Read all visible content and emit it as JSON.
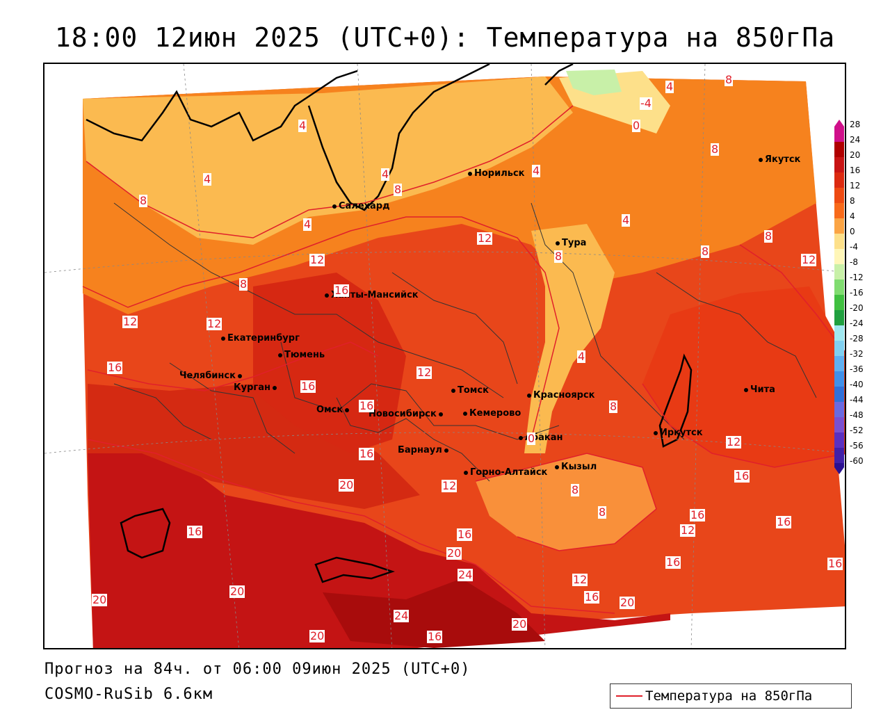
{
  "title": "18:00 12июн 2025 (UTC+0): Температура на 850гПа",
  "forecast_line": "Прогноз на 84ч. от 06:00 09июн 2025 (UTC+0)",
  "model_line": "COSMO-RuSib 6.6км",
  "legend": {
    "label": "Температура на 850гПа",
    "line_color": "#e0202a"
  },
  "cities": [
    {
      "name": "Норильск"
    },
    {
      "name": "Якутск"
    },
    {
      "name": "Салехард"
    },
    {
      "name": "Тура"
    },
    {
      "name": "Ханты-Мансийск"
    },
    {
      "name": "Екатеринбург"
    },
    {
      "name": "Тюмень"
    },
    {
      "name": "Челябинск"
    },
    {
      "name": "Курган"
    },
    {
      "name": "Омск"
    },
    {
      "name": "Новосибирск"
    },
    {
      "name": "Томск"
    },
    {
      "name": "Кемерово"
    },
    {
      "name": "Красноярск"
    },
    {
      "name": "Абакан"
    },
    {
      "name": "Барнаул"
    },
    {
      "name": "Горно-Алтайск"
    },
    {
      "name": "Кызыл"
    },
    {
      "name": "Иркутск"
    },
    {
      "name": "Чита"
    }
  ],
  "isotherm_labels": [
    "4",
    "8",
    "12",
    "16",
    "20",
    "24",
    "0",
    "-4"
  ],
  "color_scale": {
    "labels": [
      "28",
      "24",
      "20",
      "16",
      "12",
      "8",
      "4",
      "0",
      "-4",
      "-8",
      "-12",
      "-16",
      "-20",
      "-24",
      "-28",
      "-32",
      "-36",
      "-40",
      "-44",
      "-48",
      "-52",
      "-56",
      "-60"
    ],
    "colors": [
      "#d0108a",
      "#b00000",
      "#c81414",
      "#dc2a10",
      "#ee4a12",
      "#f86a1a",
      "#fba444",
      "#fde08a",
      "#fff6b8",
      "#c8f0a8",
      "#80dc70",
      "#40c040",
      "#20a040",
      "#a0e8f0",
      "#80d0f0",
      "#60b0f0",
      "#4090e8",
      "#3070d8",
      "#6a6ae0",
      "#7a50d0",
      "#5a30c0",
      "#4020a8",
      "#2a1090"
    ]
  }
}
